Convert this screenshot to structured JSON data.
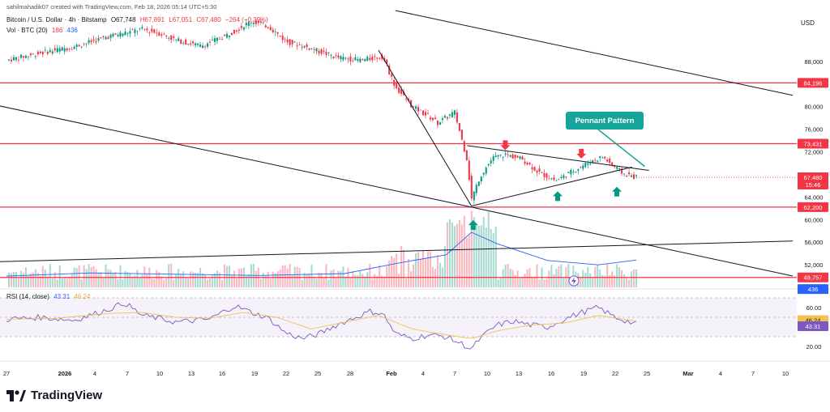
{
  "attribution": "sahilmahadik07 created with TradingView.com, Feb 18, 2026 05:14 UTC+5:30",
  "symbol": {
    "name": "Bitcoin / U.S. Dollar · 4h · Bitstamp",
    "open": "O67,748",
    "high": "H67,891",
    "low": "L67,051",
    "close": "C67,480",
    "change": "−264 (−0.39%)"
  },
  "volume_legend": {
    "label": "Vol · BTC (20)",
    "v1": "186",
    "v2": "436"
  },
  "rsi_legend": {
    "label": "RSI (14, close)",
    "v1": "43.31",
    "v2": "46.24"
  },
  "currency": "USD",
  "annotation": "Pennant Pattern",
  "brand": "TradingView",
  "colors": {
    "up": "#089981",
    "down": "#f23645",
    "rsi": "#7e57c2",
    "rsi_ma": "#f2c14e",
    "volume_ma": "#2962ff",
    "level": "#f23645",
    "label_bg": "#16a59a"
  },
  "chart_data": {
    "type": "candlestick",
    "x_ticks": [
      "27",
      "2026",
      "4",
      "7",
      "10",
      "13",
      "16",
      "19",
      "22",
      "25",
      "28",
      "Feb",
      "4",
      "7",
      "10",
      "13",
      "16",
      "19",
      "22",
      "25",
      "Mar",
      "4",
      "7",
      "10"
    ],
    "price_axis_ticks": [
      "88,000",
      "80,000",
      "76,000",
      "72,000",
      "64,000",
      "60,000",
      "56,000",
      "52,000"
    ],
    "price_range": [
      48000,
      96000
    ],
    "horizontal_levels": [
      {
        "label": "84,196",
        "value": 84196
      },
      {
        "label": "73,431",
        "value": 73431
      },
      {
        "label": "62,200",
        "value": 62200
      },
      {
        "label": "49,757",
        "value": 49757
      }
    ],
    "price_badges": [
      {
        "label": "67,480",
        "value": 67480
      },
      {
        "label": "15:46",
        "value": 66200
      },
      {
        "label": "436",
        "value": 47700
      }
    ],
    "price_path": [
      [
        0,
        88200
      ],
      [
        4,
        89500
      ],
      [
        8,
        90600
      ],
      [
        12,
        92400
      ],
      [
        16,
        93700
      ],
      [
        18,
        93000
      ],
      [
        20,
        91800
      ],
      [
        23,
        90700
      ],
      [
        26,
        92600
      ],
      [
        29,
        95100
      ],
      [
        31,
        94200
      ],
      [
        33,
        91600
      ],
      [
        36,
        90300
      ],
      [
        39,
        88700
      ],
      [
        42,
        88200
      ],
      [
        44.5,
        88900
      ],
      [
        46,
        83500
      ],
      [
        48,
        80000
      ],
      [
        50,
        78200
      ],
      [
        51,
        77100
      ],
      [
        53,
        79000
      ],
      [
        54.5,
        70500
      ],
      [
        55,
        63600
      ],
      [
        56,
        67600
      ],
      [
        57.5,
        70900
      ],
      [
        59,
        71500
      ],
      [
        61,
        70700
      ],
      [
        63,
        68300
      ],
      [
        65,
        66900
      ],
      [
        67,
        68600
      ],
      [
        69,
        70200
      ],
      [
        70.5,
        71100
      ],
      [
        72,
        69200
      ],
      [
        73,
        68100
      ],
      [
        74.5,
        67480
      ]
    ],
    "rsi_axis_ticks": [
      "60.00",
      "20.00"
    ],
    "rsi_range": [
      10,
      75
    ],
    "rsi_badges": [
      {
        "label": "46.24",
        "value": 46.24
      },
      {
        "label": "43.31",
        "value": 43.31
      }
    ],
    "rsi": [
      [
        0,
        48
      ],
      [
        4,
        50
      ],
      [
        8,
        47
      ],
      [
        12,
        58
      ],
      [
        14,
        65
      ],
      [
        16,
        52
      ],
      [
        18,
        49
      ],
      [
        20,
        45
      ],
      [
        24,
        48
      ],
      [
        27,
        62
      ],
      [
        29,
        55
      ],
      [
        31,
        49
      ],
      [
        33,
        34
      ],
      [
        35,
        28
      ],
      [
        37,
        33
      ],
      [
        39,
        42
      ],
      [
        41,
        49
      ],
      [
        43,
        56
      ],
      [
        44.5,
        54
      ],
      [
        46,
        33
      ],
      [
        48,
        28
      ],
      [
        50,
        32
      ],
      [
        52,
        30
      ],
      [
        54,
        22
      ],
      [
        55,
        17
      ],
      [
        56,
        28
      ],
      [
        58,
        42
      ],
      [
        60,
        46
      ],
      [
        62,
        42
      ],
      [
        64,
        40
      ],
      [
        66,
        48
      ],
      [
        68,
        55
      ],
      [
        70,
        60
      ],
      [
        72,
        50
      ],
      [
        74.5,
        43
      ]
    ],
    "rsi_ma": [
      [
        0,
        48
      ],
      [
        6,
        49
      ],
      [
        12,
        54
      ],
      [
        16,
        55
      ],
      [
        20,
        50
      ],
      [
        24,
        49
      ],
      [
        28,
        55
      ],
      [
        32,
        50
      ],
      [
        36,
        38
      ],
      [
        40,
        45
      ],
      [
        44,
        52
      ],
      [
        48,
        38
      ],
      [
        52,
        32
      ],
      [
        55,
        28
      ],
      [
        58,
        36
      ],
      [
        62,
        42
      ],
      [
        66,
        44
      ],
      [
        70,
        52
      ],
      [
        74.5,
        46
      ]
    ],
    "volume_ma": [
      [
        0,
        180
      ],
      [
        10,
        230
      ],
      [
        20,
        210
      ],
      [
        30,
        190
      ],
      [
        40,
        220
      ],
      [
        46,
        380
      ],
      [
        52,
        520
      ],
      [
        55,
        880
      ],
      [
        58,
        700
      ],
      [
        64,
        430
      ],
      [
        70,
        360
      ],
      [
        74.5,
        436
      ]
    ]
  }
}
